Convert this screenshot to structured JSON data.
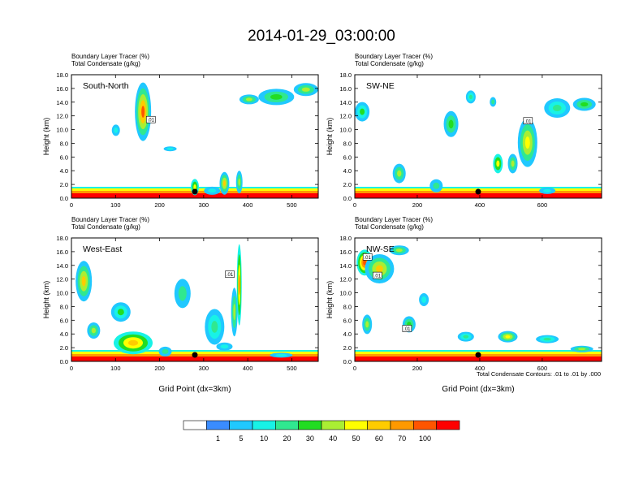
{
  "title": "2014-01-29_03:00:00",
  "colorbar": {
    "labels": [
      "1",
      "5",
      "10",
      "20",
      "30",
      "40",
      "50",
      "60",
      "70",
      "100"
    ],
    "colors": [
      "#ffffff",
      "#3a8cff",
      "#20c8ff",
      "#18f2e6",
      "#30e890",
      "#22dd22",
      "#aaee33",
      "#ffff00",
      "#ffcc00",
      "#ff9900",
      "#ff5500",
      "#ff0000"
    ]
  },
  "footnote": "Total Condensate Contours: .01 to .01 by .000",
  "chart_data": [
    {
      "type": "heatmap",
      "panel": "South-North",
      "subtitle_lines": [
        "Boundary Layer Tracer   (%)",
        "Total Condensate   (g/kg)"
      ],
      "ylabel": "Height (km)",
      "xlabel": "",
      "xlim": [
        0,
        560
      ],
      "ylim": [
        0,
        18
      ],
      "xticks": [
        "0",
        "100",
        "200",
        "300",
        "400",
        "500"
      ],
      "yticks": [
        "0.0",
        "2.0",
        "4.0",
        "6.0",
        "8.0",
        "10.0",
        "12.0",
        "14.0",
        "16.0",
        "18.0"
      ],
      "contour_labels": [
        ".01"
      ],
      "marker_x": 280
    },
    {
      "type": "heatmap",
      "panel": "SW-NE",
      "subtitle_lines": [
        "Boundary Layer Tracer   (%)",
        "Total Condensate   (g/kg)"
      ],
      "ylabel": "Height (km)",
      "xlabel": "",
      "xlim": [
        0,
        790
      ],
      "ylim": [
        0,
        18
      ],
      "xticks": [
        "0",
        "200",
        "400",
        "600"
      ],
      "yticks": [
        "0.0",
        "2.0",
        "4.0",
        "6.0",
        "8.0",
        "10.0",
        "12.0",
        "14.0",
        "16.0",
        "18.0"
      ],
      "contour_labels": [
        ".01"
      ],
      "marker_x": 395
    },
    {
      "type": "heatmap",
      "panel": "West-East",
      "subtitle_lines": [
        "Boundary Layer Tracer   (%)",
        "Total Condensate   (g/kg)"
      ],
      "ylabel": "Height (km)",
      "xlabel": "Grid Point (dx=3km)",
      "xlim": [
        0,
        560
      ],
      "ylim": [
        0,
        18
      ],
      "xticks": [
        "0",
        "100",
        "200",
        "300",
        "400",
        "500"
      ],
      "yticks": [
        "0.0",
        "2.0",
        "4.0",
        "6.0",
        "8.0",
        "10.0",
        "12.0",
        "14.0",
        "16.0",
        "18.0"
      ],
      "contour_labels": [
        ".01"
      ],
      "marker_x": 280
    },
    {
      "type": "heatmap",
      "panel": "NW-SE",
      "subtitle_lines": [
        "Boundary Layer Tracer   (%)",
        "Total Condensate   (g/kg)"
      ],
      "ylabel": "Height (km)",
      "xlabel": "Grid Point (dx=3km)",
      "xlim": [
        0,
        790
      ],
      "ylim": [
        0,
        18
      ],
      "xticks": [
        "0",
        "200",
        "400",
        "600"
      ],
      "yticks": [
        "0.0",
        "2.0",
        "4.0",
        "6.0",
        "8.0",
        "10.0",
        "12.0",
        "14.0",
        "16.0",
        "18.0"
      ],
      "contour_labels": [
        ".01",
        ".01",
        ".01"
      ],
      "marker_x": 395
    }
  ]
}
